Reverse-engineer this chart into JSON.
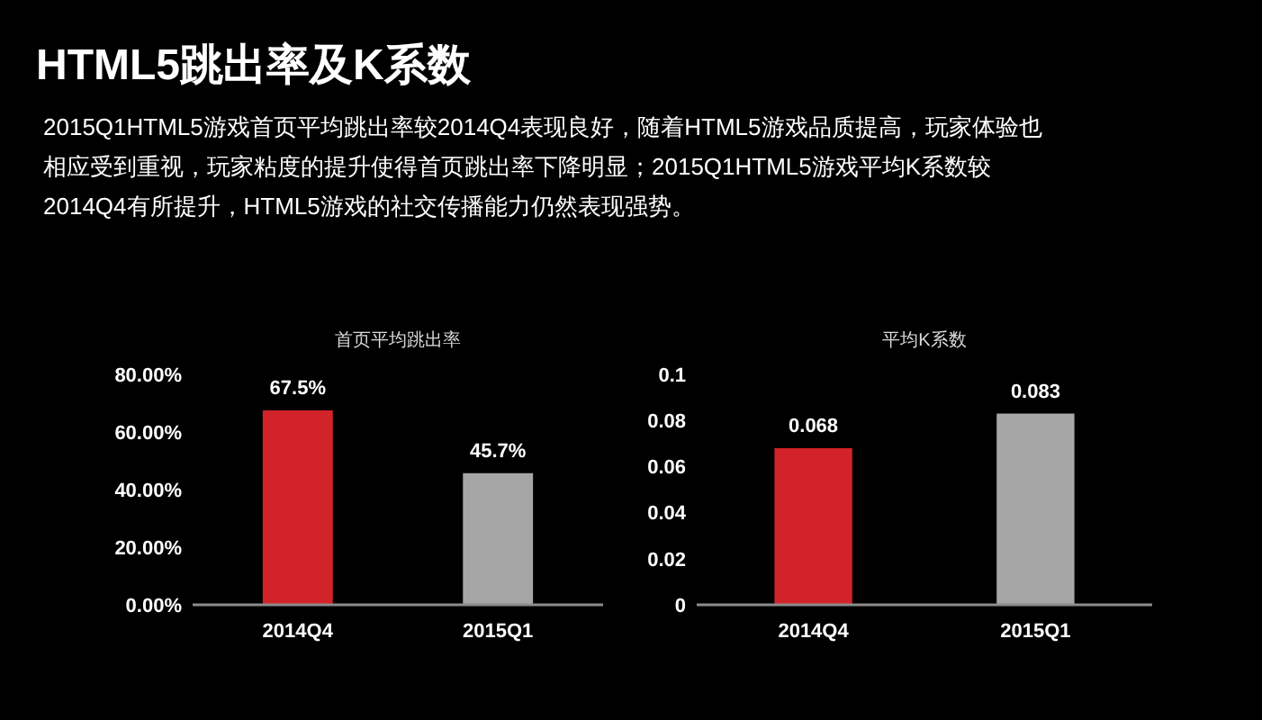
{
  "chart_data": [
    {
      "type": "other",
      "title": "HTML5跳出率及K系数",
      "annotations": [
        "2015Q1HTML5游戏首页平均跳出率较2014Q4表现良好，随着HTML5游戏品质提高，玩家体验也相应受到重视，玩家粘度的提升使得首页跳出率下降明显；2015Q1HTML5游戏平均K系数较2014Q4有所提升，HTML5游戏的社交传播能力仍然表现强势。"
      ]
    },
    {
      "type": "bar",
      "title": "首页平均跳出率",
      "categories": [
        "2014Q4",
        "2015Q1"
      ],
      "values": [
        67.5,
        45.7
      ],
      "colors": [
        "#d2232a",
        "#a6a6a6"
      ],
      "value_labels": [
        "67.5%",
        "45.7%"
      ],
      "ylim": [
        0,
        80
      ],
      "yticks": [
        {
          "value": 0,
          "label": "0.00%"
        },
        {
          "value": 20,
          "label": "20.00%"
        },
        {
          "value": 40,
          "label": "40.00%"
        },
        {
          "value": 60,
          "label": "60.00%"
        },
        {
          "value": 80,
          "label": "80.00%"
        }
      ],
      "grid": false
    },
    {
      "type": "bar",
      "title": "平均K系数",
      "categories": [
        "2014Q4",
        "2015Q1"
      ],
      "values": [
        0.068,
        0.083
      ],
      "colors": [
        "#d2232a",
        "#a6a6a6"
      ],
      "data_labels": true,
      "ylim": [
        0,
        0.1
      ],
      "yticks": [
        0,
        0.02,
        0.04,
        0.06,
        0.08,
        0.1
      ],
      "grid": false
    }
  ]
}
